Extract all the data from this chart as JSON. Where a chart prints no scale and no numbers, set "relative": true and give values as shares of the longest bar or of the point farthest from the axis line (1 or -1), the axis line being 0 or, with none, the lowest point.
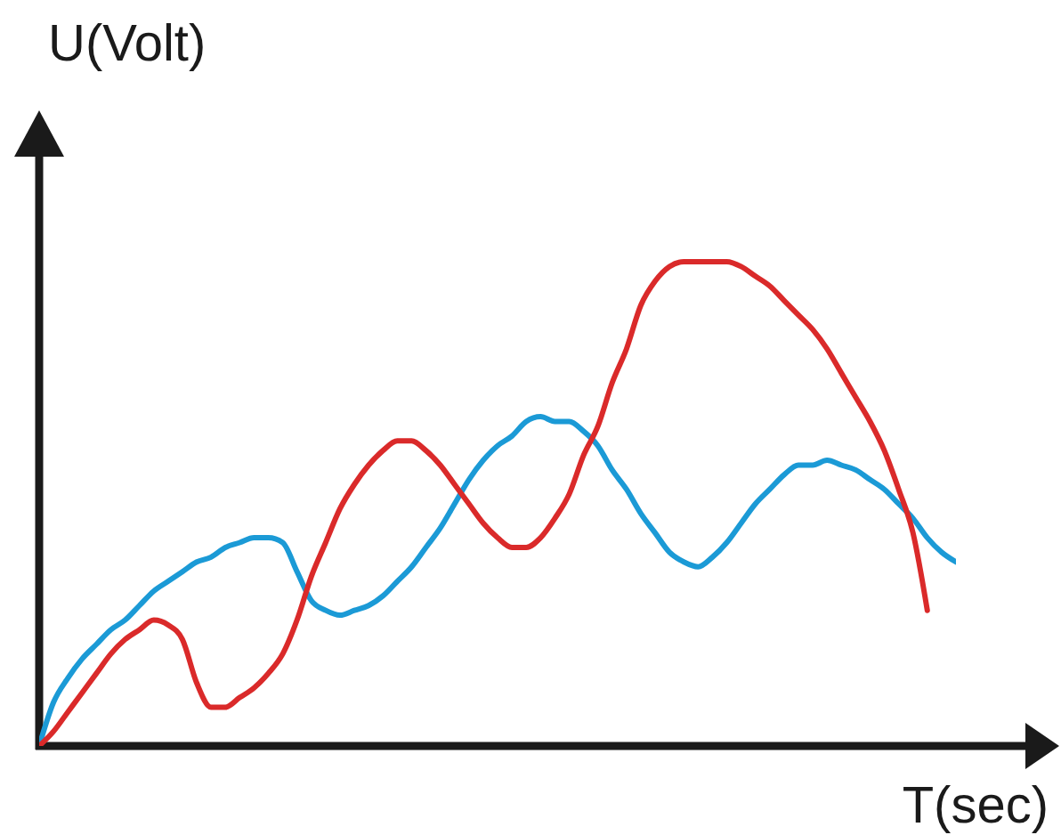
{
  "chart_data": {
    "type": "line",
    "xlabel": "T(sec)",
    "ylabel": "U(Volt)",
    "relative": true,
    "tick_labels": false,
    "categories": [
      null,
      null,
      null,
      null,
      null,
      null,
      null,
      null,
      null,
      null,
      null,
      null,
      null,
      null,
      null,
      null,
      null,
      null,
      null,
      null,
      null,
      null,
      null,
      null,
      null,
      null,
      null,
      null,
      null,
      null,
      null,
      null,
      null,
      null,
      null,
      null,
      null,
      null,
      null,
      null,
      null,
      null,
      null,
      null,
      null,
      null,
      null,
      null,
      null,
      null,
      null,
      null,
      null,
      null,
      null,
      null,
      null,
      null,
      null,
      null,
      null,
      null,
      null,
      null,
      null
    ],
    "series": [
      {
        "color": "#1b9ad6",
        "values": [
          0,
          0.09,
          0.14,
          0.18,
          0.21,
          0.24,
          0.26,
          0.29,
          0.32,
          0.34,
          0.36,
          0.38,
          0.39,
          0.41,
          0.42,
          0.43,
          0.43,
          0.42,
          0.36,
          0.3,
          0.28,
          0.27,
          0.28,
          0.29,
          0.31,
          0.34,
          0.37,
          0.41,
          0.45,
          0.5,
          0.55,
          0.59,
          0.62,
          0.64,
          0.67,
          0.68,
          0.67,
          0.67,
          0.65,
          0.62,
          0.57,
          0.53,
          0.48,
          0.44,
          0.4,
          0.38,
          0.37,
          0.39,
          0.42,
          0.46,
          0.5,
          0.53,
          0.56,
          0.58,
          0.58,
          0.59,
          0.58,
          0.57,
          0.55,
          0.53,
          0.5,
          0.47,
          0.43,
          0.4,
          0.38
        ]
      },
      {
        "color": "#da2a2a",
        "values": [
          0,
          0.03,
          0.07,
          0.11,
          0.15,
          0.19,
          0.22,
          0.24,
          0.26,
          0.25,
          0.22,
          0.13,
          0.08,
          0.08,
          0.1,
          0.12,
          0.15,
          0.19,
          0.26,
          0.35,
          0.42,
          0.49,
          0.54,
          0.58,
          0.61,
          0.63,
          0.63,
          0.61,
          0.58,
          0.54,
          0.5,
          0.46,
          0.43,
          0.41,
          0.41,
          0.43,
          0.47,
          0.52,
          0.6,
          0.66,
          0.75,
          0.82,
          0.91,
          0.96,
          0.99,
          1.0,
          1.0,
          1.0,
          1.0,
          0.99,
          0.97,
          0.95,
          0.92,
          0.89,
          0.86,
          0.82,
          0.77,
          0.72,
          0.67,
          0.61,
          0.53,
          0.44,
          0.28,
          null,
          null
        ]
      }
    ]
  }
}
